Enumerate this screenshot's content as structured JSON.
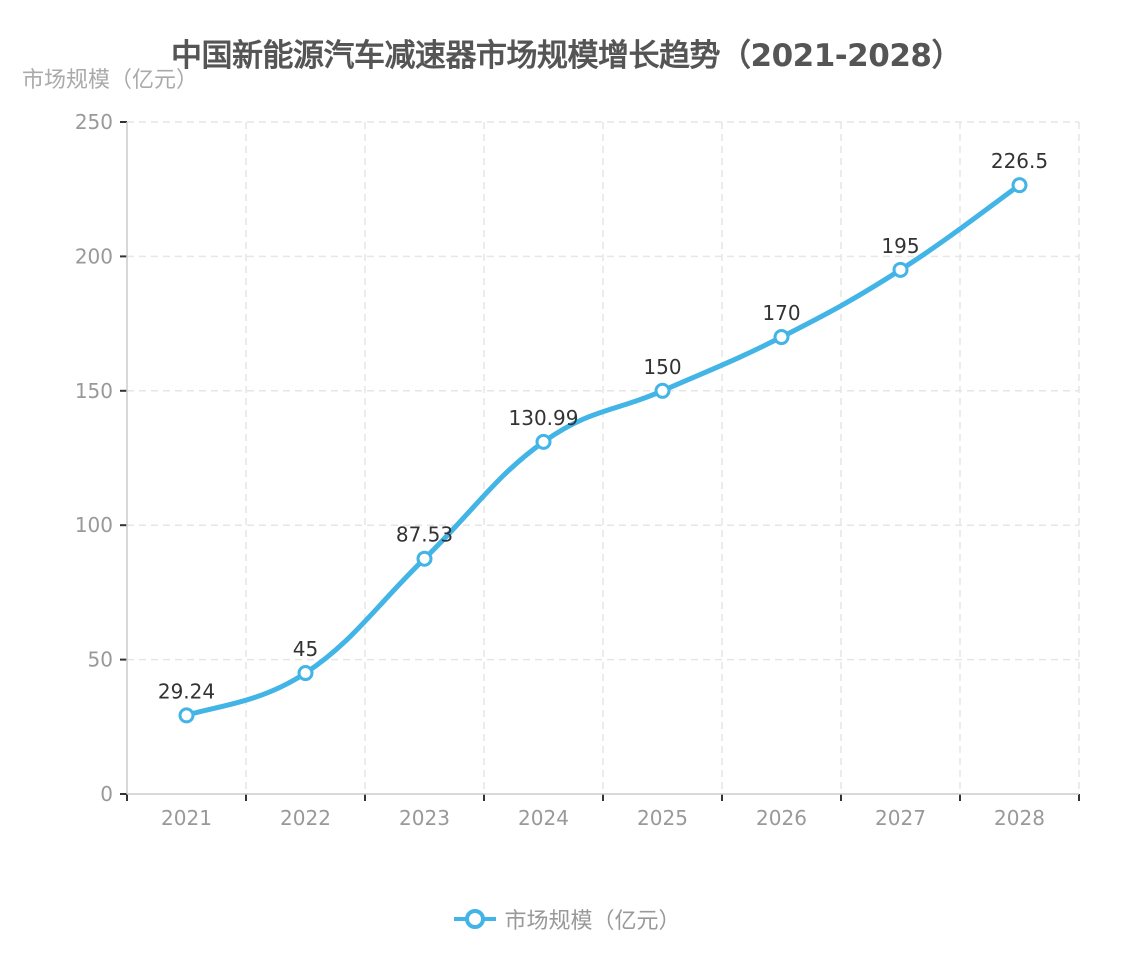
{
  "chart_data": {
    "type": "line",
    "title": "中国新能源汽车减速器市场规模增长趋势（2021-2028）",
    "xlabel": "",
    "ylabel": "市场规模（亿元）",
    "categories": [
      "2021",
      "2022",
      "2023",
      "2024",
      "2025",
      "2026",
      "2027",
      "2028"
    ],
    "series": [
      {
        "name": "市场规模（亿元）",
        "values": [
          29.24,
          45,
          87.53,
          130.99,
          150,
          170,
          195,
          226.5
        ],
        "color": "#42b4e6",
        "smooth": true
      }
    ],
    "ylim": [
      0,
      250
    ],
    "yticks": [
      0,
      50,
      100,
      150,
      200,
      250
    ],
    "grid": true,
    "legend_position": "bottom"
  },
  "legend": {
    "label": "市场规模（亿元）"
  }
}
